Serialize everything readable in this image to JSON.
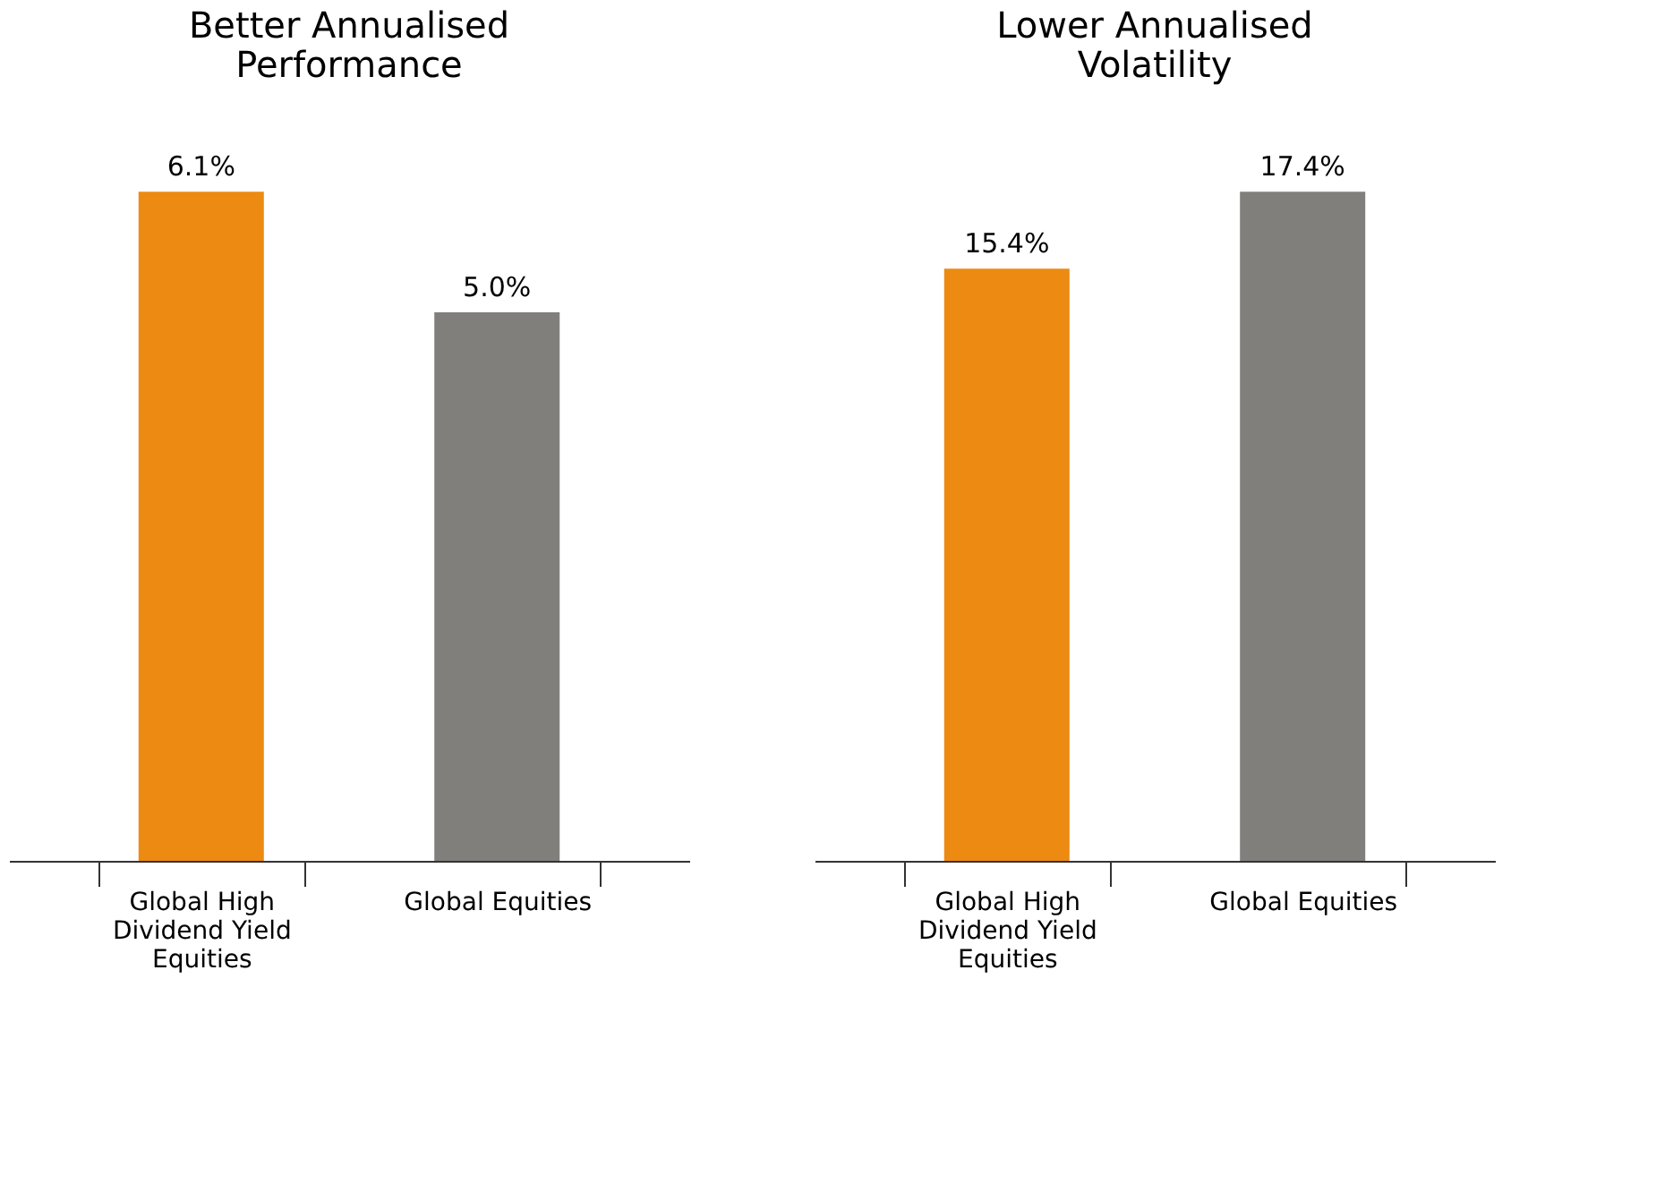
{
  "chart_data": [
    {
      "type": "bar",
      "title": "Better Annualised Performance",
      "categories": [
        "Global High Dividend Yield Equities",
        "Global Equities"
      ],
      "values": [
        6.1,
        5.0
      ],
      "colors": [
        "#ec8a12",
        "#807f7c"
      ],
      "value_labels": [
        "6.1%",
        "5.0%"
      ],
      "grid": false,
      "tick_labels": "x"
    },
    {
      "type": "bar",
      "title": "Lower Annualised Volatility",
      "categories": [
        "Global High Dividend Yield Equities",
        "Global Equities"
      ],
      "values": [
        15.4,
        17.4
      ],
      "colors": [
        "#ec8a12",
        "#807f7c"
      ],
      "value_labels": [
        "15.4%",
        "17.4%"
      ],
      "grid": false,
      "tick_labels": "x"
    }
  ]
}
